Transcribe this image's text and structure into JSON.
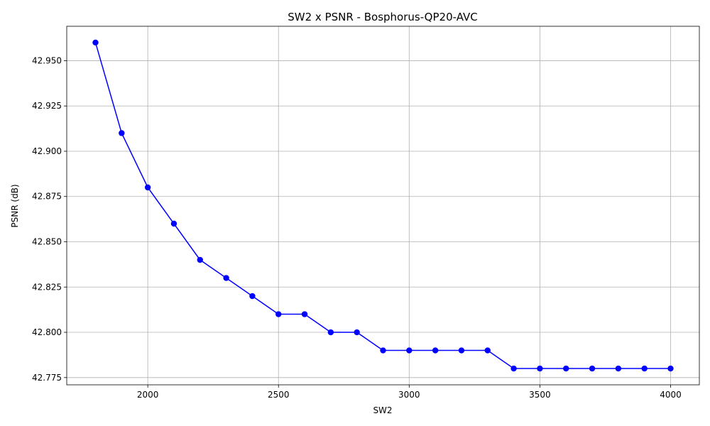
{
  "chart_data": {
    "type": "line",
    "title": "SW2 x PSNR - Bosphorus-QP20-AVC",
    "xlabel": "SW2",
    "ylabel": "PSNR (dB)",
    "xlim": [
      1690,
      4110
    ],
    "ylim": [
      42.771,
      42.969
    ],
    "x_ticks": [
      2000,
      2500,
      3000,
      3500,
      4000
    ],
    "x_tick_labels": [
      "2000",
      "2500",
      "3000",
      "3500",
      "4000"
    ],
    "y_ticks": [
      42.775,
      42.8,
      42.825,
      42.85,
      42.875,
      42.9,
      42.925,
      42.95
    ],
    "y_tick_labels": [
      "42.775",
      "42.800",
      "42.825",
      "42.850",
      "42.875",
      "42.900",
      "42.925",
      "42.950"
    ],
    "grid": true,
    "series": [
      {
        "color": "#0000ff",
        "marker": "circle",
        "x": [
          1800,
          1900,
          2000,
          2100,
          2200,
          2300,
          2400,
          2500,
          2600,
          2700,
          2800,
          2900,
          3000,
          3100,
          3200,
          3300,
          3400,
          3500,
          3600,
          3700,
          3800,
          3900,
          4000
        ],
        "y": [
          42.96,
          42.91,
          42.88,
          42.86,
          42.84,
          42.83,
          42.82,
          42.81,
          42.81,
          42.8,
          42.8,
          42.79,
          42.79,
          42.79,
          42.79,
          42.79,
          42.78,
          42.78,
          42.78,
          42.78,
          42.78,
          42.78,
          42.78
        ]
      }
    ]
  }
}
